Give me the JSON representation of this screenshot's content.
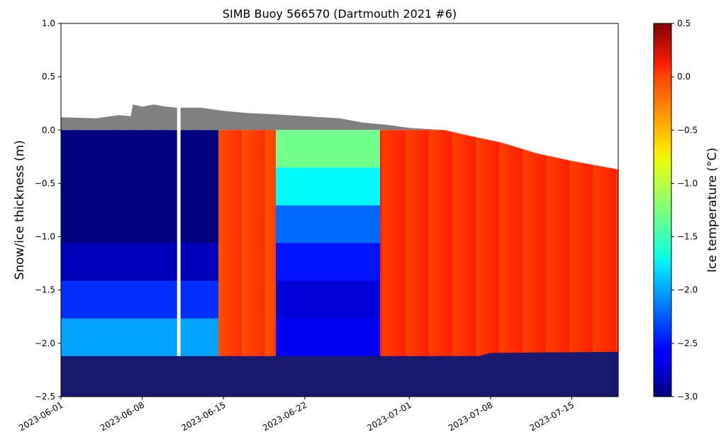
{
  "chart_data": {
    "type": "heatmap",
    "title": "SIMB Buoy 566570 (Dartmouth 2021 #6)",
    "ylabel": "Snow/ice thickness (m)",
    "colorbar_label": "Ice temperature (°C)",
    "xlim": [
      "2023-06-01",
      "2023-07-19"
    ],
    "ylim": [
      -2.5,
      1.0
    ],
    "x_ticks": [
      "2023-06-01",
      "2023-06-08",
      "2023-06-15",
      "2023-06-22",
      "2023-07-01",
      "2023-07-08",
      "2023-07-15"
    ],
    "y_ticks": [
      -2.5,
      -2.0,
      -1.5,
      -1.0,
      -0.5,
      0.0,
      0.5,
      1.0
    ],
    "y_tick_labels": [
      "−2.5",
      "−2.0",
      "−1.5",
      "−1.0",
      "−0.5",
      "0.0",
      "0.5",
      "1.0"
    ],
    "colorbar_range": [
      -3.0,
      0.5
    ],
    "colorbar_ticks": [
      -3.0,
      -2.5,
      -2.0,
      -1.5,
      -1.0,
      -0.5,
      0.0,
      0.5
    ],
    "colorbar_tick_labels": [
      "−3.0",
      "−2.5",
      "−2.0",
      "−1.5",
      "−1.0",
      "−0.5",
      "0.0",
      "0.5"
    ],
    "colormap": "jet",
    "colors": {
      "snow": "#808080",
      "water": "#191970",
      "gap": "#ffffff"
    },
    "snow_surface": [
      {
        "x": "2023-06-01",
        "y": 0.12
      },
      {
        "x": "2023-06-04",
        "y": 0.11
      },
      {
        "x": "2023-06-06",
        "y": 0.14
      },
      {
        "x": "2023-06-07",
        "y": 0.13
      },
      {
        "x": "2023-06-07.2",
        "y": 0.24
      },
      {
        "x": "2023-06-08",
        "y": 0.22
      },
      {
        "x": "2023-06-09",
        "y": 0.24
      },
      {
        "x": "2023-06-10",
        "y": 0.22
      },
      {
        "x": "2023-06-11",
        "y": 0.21
      },
      {
        "x": "2023-06-13",
        "y": 0.21
      },
      {
        "x": "2023-06-15",
        "y": 0.18
      },
      {
        "x": "2023-06-17",
        "y": 0.16
      },
      {
        "x": "2023-06-19",
        "y": 0.15
      },
      {
        "x": "2023-06-22",
        "y": 0.13
      },
      {
        "x": "2023-06-25",
        "y": 0.11
      },
      {
        "x": "2023-06-27",
        "y": 0.07
      },
      {
        "x": "2023-06-29",
        "y": 0.05
      },
      {
        "x": "2023-07-01",
        "y": 0.02
      },
      {
        "x": "2023-07-04",
        "y": 0.0
      }
    ],
    "ice_surface": [
      {
        "x": "2023-06-01",
        "y": 0.0
      },
      {
        "x": "2023-07-04",
        "y": 0.0
      },
      {
        "x": "2023-07-06",
        "y": -0.05
      },
      {
        "x": "2023-07-09",
        "y": -0.12
      },
      {
        "x": "2023-07-12",
        "y": -0.22
      },
      {
        "x": "2023-07-15",
        "y": -0.29
      },
      {
        "x": "2023-07-19",
        "y": -0.37
      }
    ],
    "ice_bottom": [
      {
        "x": "2023-06-01",
        "y": -2.12
      },
      {
        "x": "2023-07-07",
        "y": -2.12
      },
      {
        "x": "2023-07-08",
        "y": -2.09
      },
      {
        "x": "2023-07-19",
        "y": -2.08
      }
    ],
    "temperature_segments": [
      {
        "x_start": "2023-06-01",
        "x_end": "2023-06-14.5",
        "profile": "cold",
        "values": [
          -3.0,
          -3.0,
          -3.0,
          -2.8,
          -2.4,
          -2.0
        ]
      },
      {
        "x_start": "2023-06-14.5",
        "x_end": "2023-06-19.5",
        "profile": "warm",
        "values": [
          -0.15
        ]
      },
      {
        "x_start": "2023-06-19.5",
        "x_end": "2023-06-28.5",
        "profile": "cooling",
        "values": [
          -1.3,
          -1.7,
          -2.2,
          -2.5,
          -2.7,
          -2.6
        ]
      },
      {
        "x_start": "2023-06-28.5",
        "x_end": "2023-07-19",
        "profile": "warm",
        "values": [
          -0.1
        ]
      }
    ],
    "data_gap": [
      "2023-06-11.0",
      "2023-06-11.3"
    ]
  }
}
